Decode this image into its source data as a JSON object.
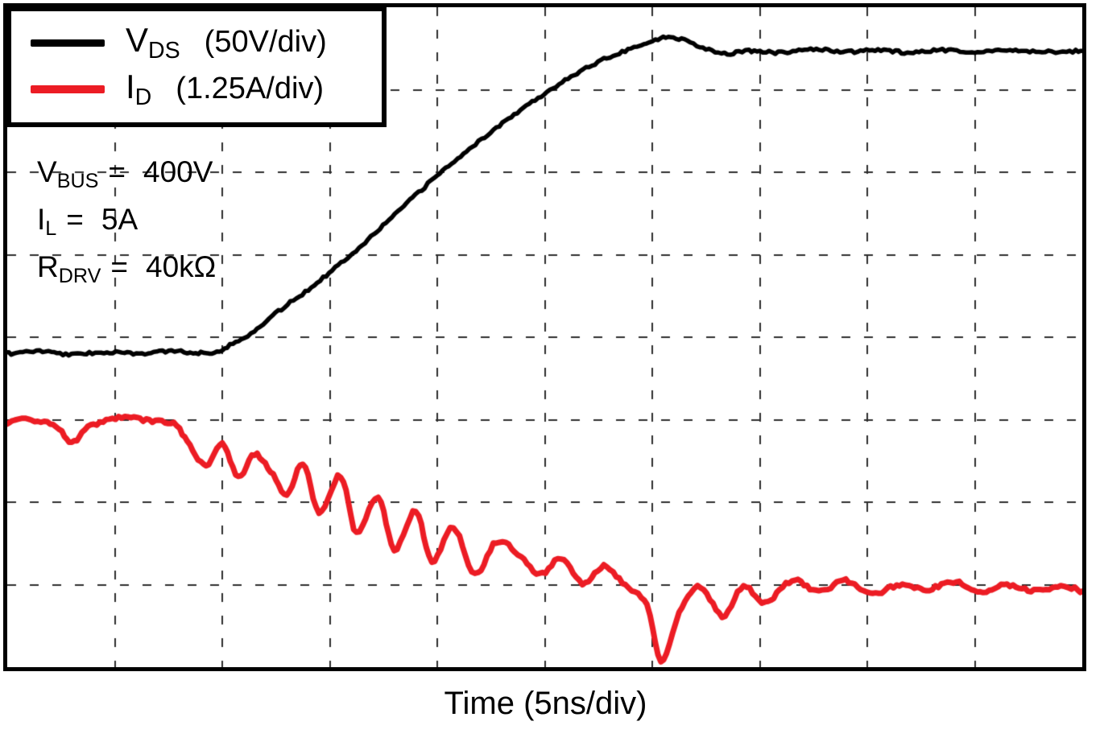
{
  "x_axis_label": "Time (5ns/div)",
  "legend": {
    "items": [
      {
        "symbol": "V",
        "subscript": "DS",
        "scale": "(50V/div)",
        "color": "#000000"
      },
      {
        "symbol": "I",
        "subscript": "D",
        "scale": "(1.25A/div)",
        "color": "#ec1c24"
      }
    ]
  },
  "conditions": [
    {
      "symbol": "V",
      "subscript": "BUS",
      "eq": "=",
      "value": "400V"
    },
    {
      "symbol": "I",
      "subscript": "L",
      "eq": "=",
      "value": "5A"
    },
    {
      "symbol": "R",
      "subscript": "DRV",
      "eq": "=",
      "value": "40kΩ"
    }
  ],
  "chart_data": {
    "type": "line",
    "title": "",
    "xlabel": "Time (5ns/div)",
    "ylabel": "",
    "x_axis": {
      "divisions": 10,
      "units_per_div": "5ns"
    },
    "y_axis": {
      "divisions": 8
    },
    "grid": {
      "show": true,
      "color": "#2e2e2e",
      "dash": [
        11,
        17
      ],
      "line_width": 2
    },
    "legend_position": "top-left",
    "note": "y values are screen divisions measured from top of graticule; VDS scale 50V/div, ID scale 1.25A/div",
    "series": [
      {
        "name": "VDS",
        "label": "VDS (50V/div)",
        "color": "#000000",
        "width": 5.5,
        "noise": 0.035,
        "seed": 7,
        "units_per_div": "50V",
        "points": [
          [
            0,
            4.2
          ],
          [
            0.3,
            4.17
          ],
          [
            0.6,
            4.21
          ],
          [
            0.9,
            4.18
          ],
          [
            1.2,
            4.2
          ],
          [
            1.5,
            4.17
          ],
          [
            1.8,
            4.19
          ],
          [
            1.95,
            4.17
          ],
          [
            2.1,
            4.08
          ],
          [
            2.3,
            3.92
          ],
          [
            2.55,
            3.66
          ],
          [
            2.8,
            3.42
          ],
          [
            3.05,
            3.16
          ],
          [
            3.3,
            2.88
          ],
          [
            3.55,
            2.58
          ],
          [
            3.8,
            2.28
          ],
          [
            4.05,
            1.98
          ],
          [
            4.3,
            1.72
          ],
          [
            4.55,
            1.46
          ],
          [
            4.8,
            1.22
          ],
          [
            5.05,
            1.0
          ],
          [
            5.3,
            0.8
          ],
          [
            5.55,
            0.63
          ],
          [
            5.8,
            0.5
          ],
          [
            6.0,
            0.41
          ],
          [
            6.15,
            0.36
          ],
          [
            6.3,
            0.4
          ],
          [
            6.5,
            0.5
          ],
          [
            6.7,
            0.56
          ],
          [
            6.9,
            0.53
          ],
          [
            7.2,
            0.55
          ],
          [
            7.5,
            0.51
          ],
          [
            7.8,
            0.54
          ],
          [
            8.1,
            0.52
          ],
          [
            8.4,
            0.55
          ],
          [
            8.7,
            0.52
          ],
          [
            9.0,
            0.54
          ],
          [
            9.3,
            0.52
          ],
          [
            9.6,
            0.54
          ],
          [
            10,
            0.53
          ]
        ]
      },
      {
        "name": "ID",
        "label": "ID (1.25A/div)",
        "color": "#ec1c24",
        "width": 7,
        "noise": 0.045,
        "seed": 13,
        "units_per_div": "1.25A",
        "points": [
          [
            0,
            5.05
          ],
          [
            0.2,
            5.0
          ],
          [
            0.45,
            5.08
          ],
          [
            0.6,
            5.28
          ],
          [
            0.75,
            5.1
          ],
          [
            0.95,
            5.0
          ],
          [
            1.15,
            4.98
          ],
          [
            1.35,
            5.02
          ],
          [
            1.55,
            5.05
          ],
          [
            1.7,
            5.32
          ],
          [
            1.85,
            5.55
          ],
          [
            2.0,
            5.28
          ],
          [
            2.15,
            5.7
          ],
          [
            2.3,
            5.42
          ],
          [
            2.45,
            5.62
          ],
          [
            2.6,
            5.92
          ],
          [
            2.75,
            5.52
          ],
          [
            2.9,
            6.12
          ],
          [
            3.1,
            5.68
          ],
          [
            3.25,
            6.38
          ],
          [
            3.45,
            5.92
          ],
          [
            3.6,
            6.58
          ],
          [
            3.8,
            6.1
          ],
          [
            3.95,
            6.72
          ],
          [
            4.15,
            6.3
          ],
          [
            4.35,
            6.88
          ],
          [
            4.55,
            6.48
          ],
          [
            4.75,
            6.62
          ],
          [
            4.95,
            6.88
          ],
          [
            5.15,
            6.68
          ],
          [
            5.35,
            6.98
          ],
          [
            5.55,
            6.78
          ],
          [
            5.75,
            7.02
          ],
          [
            5.95,
            7.25
          ],
          [
            6.08,
            7.92
          ],
          [
            6.25,
            7.35
          ],
          [
            6.45,
            7.02
          ],
          [
            6.65,
            7.38
          ],
          [
            6.85,
            7.02
          ],
          [
            7.05,
            7.22
          ],
          [
            7.3,
            6.95
          ],
          [
            7.55,
            7.08
          ],
          [
            7.8,
            6.95
          ],
          [
            8.05,
            7.12
          ],
          [
            8.3,
            7.0
          ],
          [
            8.55,
            7.06
          ],
          [
            8.8,
            6.96
          ],
          [
            9.05,
            7.1
          ],
          [
            9.3,
            7.0
          ],
          [
            9.55,
            7.08
          ],
          [
            9.8,
            7.02
          ],
          [
            10,
            7.08
          ]
        ]
      }
    ]
  }
}
